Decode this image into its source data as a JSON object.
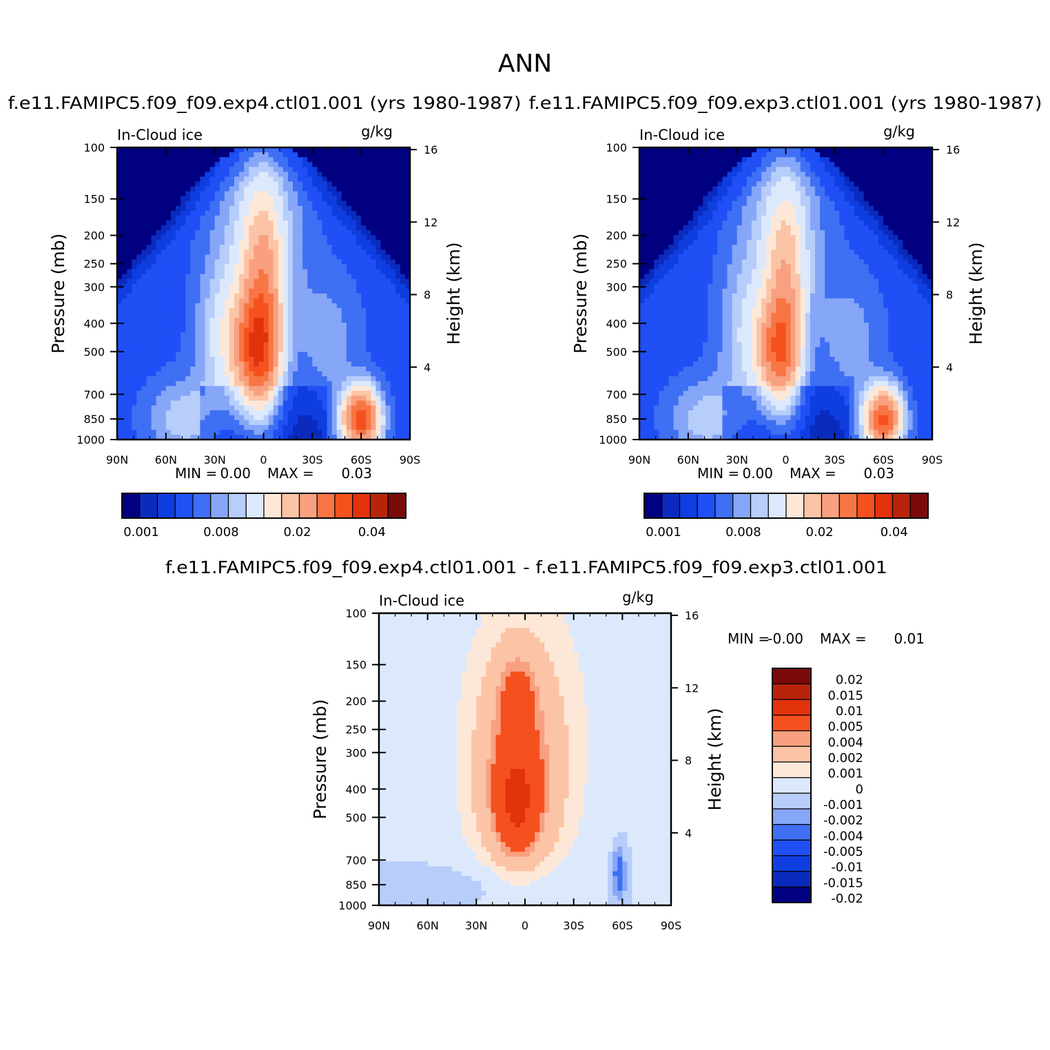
{
  "page_title": "ANN",
  "chart_data": [
    {
      "type": "contour",
      "id": "p1",
      "title": "f.e11.FAMIPC5.f09_f09.exp4.ctl01.001 (yrs 1980-1987)",
      "left_label": "In-Cloud ice",
      "right_label": "g/kg",
      "ylabel": "Pressure (mb)",
      "ylabel_right": "Height (km)",
      "x_ticks": [
        "90N",
        "60N",
        "30N",
        "0",
        "30S",
        "60S",
        "90S"
      ],
      "y_ticks": [
        "100",
        "150",
        "200",
        "250",
        "300",
        "400",
        "500",
        "700",
        "850",
        "1000"
      ],
      "y_right_ticks": [
        "16",
        "12",
        "8",
        "4"
      ],
      "min_label": "MIN =",
      "min_value": "0.00",
      "max_label": "MAX =",
      "max_value": "0.03",
      "colorbar_labels": [
        "0.001",
        "0.008",
        "0.02",
        "0.04"
      ],
      "colors": [
        "#000080",
        "#0A2BBE",
        "#0F3EE0",
        "#1F4FF5",
        "#3F6FF3",
        "#86A6F8",
        "#B7CDFA",
        "#DCE9FC",
        "#FDE8D8",
        "#FCC4A6",
        "#F8A080",
        "#F87544",
        "#F4511E",
        "#E2320C",
        "#B8240A",
        "#7A0A0A"
      ],
      "peak_value": 0.03,
      "peaks": [
        {
          "lat": 5,
          "p": 500,
          "v": 0.022,
          "sx": 10,
          "sz": 2.2
        },
        {
          "lat": 0,
          "p": 350,
          "v": 0.014,
          "sx": 8,
          "sz": 4.0
        },
        {
          "lat": 2,
          "p": 200,
          "v": 0.008,
          "sx": 18,
          "sz": 3.5
        },
        {
          "lat": 25,
          "p": 450,
          "v": 0.007,
          "sx": 12,
          "sz": 3.0
        },
        {
          "lat": -60,
          "p": 850,
          "v": 0.03,
          "sx": 8,
          "sz": 1.2
        },
        {
          "lat": 50,
          "p": 850,
          "v": 0.006,
          "sx": 16,
          "sz": 1.6
        },
        {
          "lat": -40,
          "p": 450,
          "v": 0.004,
          "sx": 14,
          "sz": 2.5
        }
      ]
    },
    {
      "type": "contour",
      "id": "p2",
      "title": "f.e11.FAMIPC5.f09_f09.exp3.ctl01.001 (yrs 1980-1987)",
      "left_label": "In-Cloud ice",
      "right_label": "g/kg",
      "ylabel": "Pressure (mb)",
      "ylabel_right": "Height (km)",
      "x_ticks": [
        "90N",
        "60N",
        "30N",
        "0",
        "30S",
        "60S",
        "90S"
      ],
      "y_ticks": [
        "100",
        "150",
        "200",
        "250",
        "300",
        "400",
        "500",
        "700",
        "850",
        "1000"
      ],
      "y_right_ticks": [
        "16",
        "12",
        "8",
        "4"
      ],
      "min_label": "MIN =",
      "min_value": "0.00",
      "max_label": "MAX =",
      "max_value": "0.03",
      "colorbar_labels": [
        "0.001",
        "0.008",
        "0.02",
        "0.04"
      ],
      "colors": [
        "#000080",
        "#0A2BBE",
        "#0F3EE0",
        "#1F4FF5",
        "#3F6FF3",
        "#86A6F8",
        "#B7CDFA",
        "#DCE9FC",
        "#FDE8D8",
        "#FCC4A6",
        "#F8A080",
        "#F87544",
        "#F4511E",
        "#E2320C",
        "#B8240A",
        "#7A0A0A"
      ],
      "peak_value": 0.03,
      "peaks": [
        {
          "lat": 5,
          "p": 500,
          "v": 0.018,
          "sx": 9,
          "sz": 2.0
        },
        {
          "lat": 0,
          "p": 350,
          "v": 0.012,
          "sx": 8,
          "sz": 4.0
        },
        {
          "lat": 2,
          "p": 200,
          "v": 0.007,
          "sx": 18,
          "sz": 3.5
        },
        {
          "lat": 25,
          "p": 450,
          "v": 0.006,
          "sx": 12,
          "sz": 3.0
        },
        {
          "lat": -60,
          "p": 850,
          "v": 0.028,
          "sx": 8,
          "sz": 1.2
        },
        {
          "lat": 50,
          "p": 850,
          "v": 0.006,
          "sx": 16,
          "sz": 1.6
        },
        {
          "lat": -40,
          "p": 450,
          "v": 0.004,
          "sx": 14,
          "sz": 2.5
        }
      ]
    },
    {
      "type": "contour",
      "id": "p3",
      "title": "f.e11.FAMIPC5.f09_f09.exp4.ctl01.001 - f.e11.FAMIPC5.f09_f09.exp3.ctl01.001",
      "left_label": "In-Cloud ice",
      "right_label": "g/kg",
      "ylabel": "Pressure (mb)",
      "ylabel_right": "Height (km)",
      "x_ticks": [
        "90N",
        "60N",
        "30N",
        "0",
        "30S",
        "60S",
        "90S"
      ],
      "y_ticks": [
        "100",
        "150",
        "200",
        "250",
        "300",
        "400",
        "500",
        "700",
        "850",
        "1000"
      ],
      "y_right_ticks": [
        "16",
        "12",
        "8",
        "4"
      ],
      "min_label": "MIN =",
      "min_value": "-0.00",
      "max_label": "MAX =",
      "max_value": "0.01",
      "colorbar_labels": [
        "0.02",
        "0.015",
        "0.01",
        "0.005",
        "0.004",
        "0.002",
        "0.001",
        "0",
        "-0.001",
        "-0.002",
        "-0.004",
        "-0.005",
        "-0.01",
        "-0.015",
        "-0.02"
      ],
      "colors": [
        "#7A0A0A",
        "#B8240A",
        "#E2320C",
        "#F4511E",
        "#F8A080",
        "#FCC4A6",
        "#FDE8D8",
        "#DCE9FC",
        "#B7CDFA",
        "#86A6F8",
        "#3F6FF3",
        "#1F4FF5",
        "#0F3EE0",
        "#0A2BBE",
        "#000080"
      ],
      "levels": [
        0.02,
        0.015,
        0.01,
        0.005,
        0.004,
        0.002,
        0.001,
        0,
        -0.001,
        -0.002,
        -0.004,
        -0.005,
        -0.01,
        -0.015,
        -0.02
      ],
      "peaks": [
        {
          "lat": 5,
          "p": 440,
          "v": 0.006,
          "sx": 7,
          "sz": 1.6
        },
        {
          "lat": 5,
          "p": 420,
          "v": 0.004,
          "sx": 14,
          "sz": 2.8
        },
        {
          "lat": 5,
          "p": 190,
          "v": 0.003,
          "sx": 9,
          "sz": 1.8
        },
        {
          "lat": 3,
          "p": 300,
          "v": 0.002,
          "sx": 22,
          "sz": 4.5
        },
        {
          "lat": 0,
          "p": 250,
          "v": 0.0015,
          "sx": 30,
          "sz": 7.0
        },
        {
          "lat": -58,
          "p": 780,
          "v": -0.003,
          "sx": 3,
          "sz": 1.0
        },
        {
          "lat": 10,
          "p": 850,
          "v": -0.0012,
          "sx": 28,
          "sz": 1.1
        }
      ]
    }
  ]
}
